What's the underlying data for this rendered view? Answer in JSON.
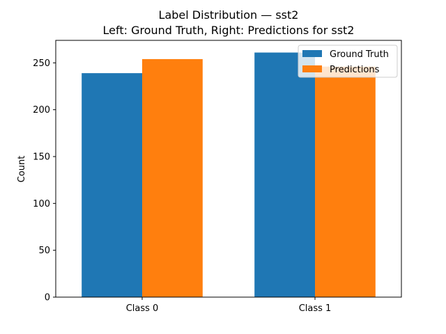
{
  "chart_data": {
    "type": "bar",
    "title": "Label Distribution — sst2",
    "subtitle": "Left: Ground Truth, Right: Predictions for sst2",
    "xlabel": "",
    "ylabel": "Count",
    "categories": [
      "Class 0",
      "Class 1"
    ],
    "series": [
      {
        "name": "Ground Truth",
        "values": [
          239,
          261
        ],
        "color": "#1f77b4"
      },
      {
        "name": "Predictions",
        "values": [
          254,
          246
        ],
        "color": "#ff7f0e"
      }
    ],
    "ylim": [
      0,
      274
    ],
    "yticks": [
      0,
      50,
      100,
      150,
      200,
      250
    ],
    "grid": false,
    "legend_position": "top-right"
  }
}
